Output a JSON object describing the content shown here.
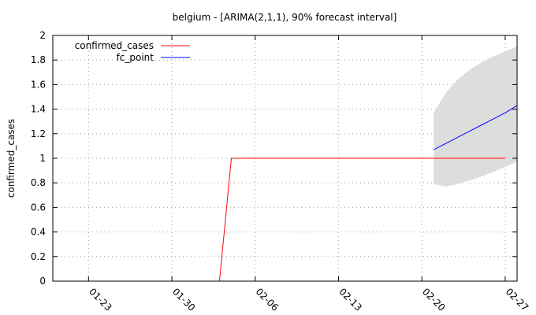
{
  "chart_data": {
    "type": "line",
    "title": "belgium -  [ARIMA(2,1,1), 90% forecast interval]",
    "xlabel": "",
    "ylabel": "confirmed_cases",
    "x_type": "date",
    "xlim": [
      "2020-01-20",
      "2020-02-28"
    ],
    "ylim": [
      0,
      2
    ],
    "y_ticks": [
      "0",
      "0.2",
      "0.4",
      "0.6",
      "0.8",
      "1",
      "1.2",
      "1.4",
      "1.6",
      "1.8",
      "2"
    ],
    "x_ticks": [
      "01-23",
      "01-30",
      "02-06",
      "02-13",
      "02-20",
      "02-27"
    ],
    "x_tick_dates": [
      "2020-01-23",
      "2020-01-30",
      "2020-02-06",
      "2020-02-13",
      "2020-02-20",
      "2020-02-27"
    ],
    "grid": true,
    "legend_position": "top-left",
    "series": [
      {
        "name": "confirmed_cases",
        "color": "#ff0000",
        "points": [
          {
            "x": "2020-02-03",
            "y": 0
          },
          {
            "x": "2020-02-04",
            "y": 1
          },
          {
            "x": "2020-02-27",
            "y": 1
          }
        ]
      },
      {
        "name": "fc_point",
        "color": "#0000ff",
        "points": [
          {
            "x": "2020-02-21",
            "y": 1.07
          },
          {
            "x": "2020-02-22",
            "y": 1.12
          },
          {
            "x": "2020-02-23",
            "y": 1.17
          },
          {
            "x": "2020-02-24",
            "y": 1.22
          },
          {
            "x": "2020-02-25",
            "y": 1.27
          },
          {
            "x": "2020-02-26",
            "y": 1.32
          },
          {
            "x": "2020-02-27",
            "y": 1.37
          },
          {
            "x": "2020-02-28",
            "y": 1.43
          }
        ]
      }
    ],
    "interval": {
      "color": "#dddddd",
      "points": [
        {
          "x": "2020-02-21",
          "lower": 0.79,
          "upper": 1.37
        },
        {
          "x": "2020-02-22",
          "lower": 0.77,
          "upper": 1.53
        },
        {
          "x": "2020-02-23",
          "lower": 0.79,
          "upper": 1.64
        },
        {
          "x": "2020-02-24",
          "lower": 0.82,
          "upper": 1.72
        },
        {
          "x": "2020-02-25",
          "lower": 0.85,
          "upper": 1.78
        },
        {
          "x": "2020-02-26",
          "lower": 0.89,
          "upper": 1.83
        },
        {
          "x": "2020-02-27",
          "lower": 0.93,
          "upper": 1.87
        },
        {
          "x": "2020-02-28",
          "lower": 0.97,
          "upper": 1.91
        }
      ]
    }
  }
}
